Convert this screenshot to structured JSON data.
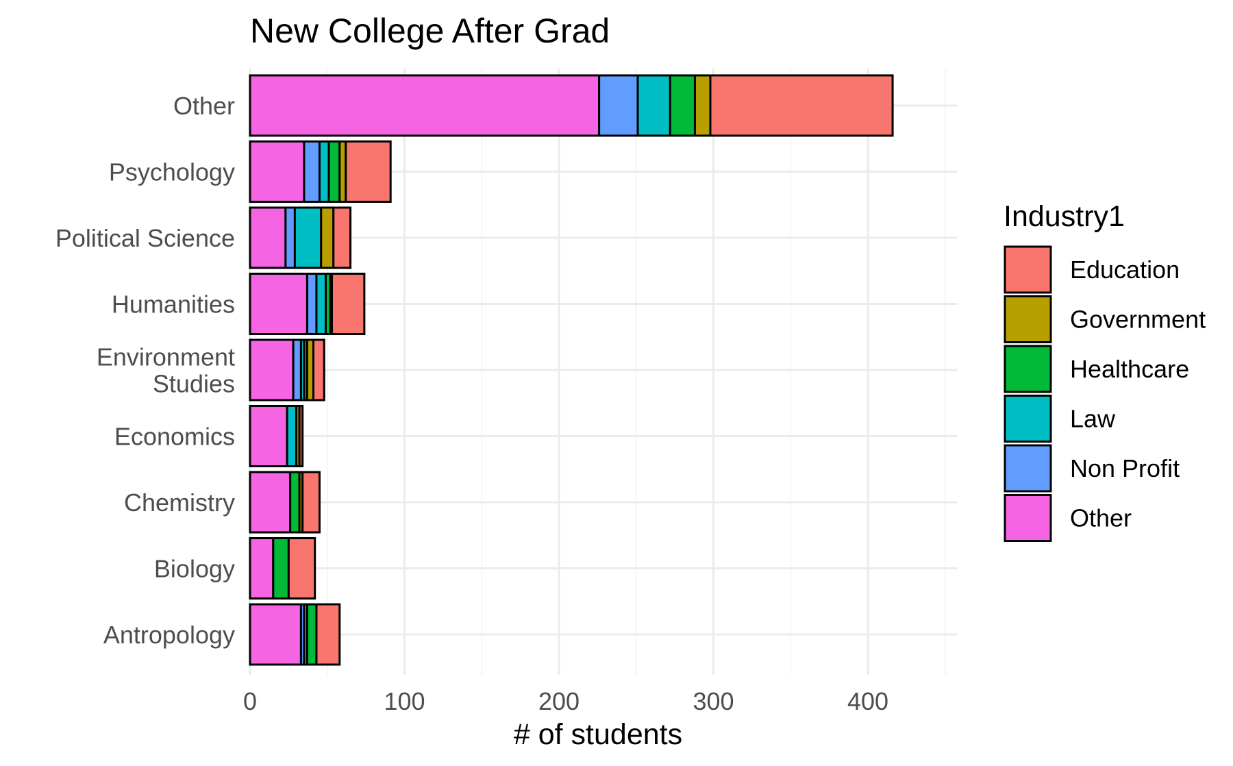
{
  "chart_data": {
    "type": "bar",
    "orientation": "horizontal",
    "stacked": true,
    "title": "New College After Grad",
    "xlabel": "# of students",
    "ylabel": "",
    "xlim": [
      0,
      460
    ],
    "x_ticks": [
      0,
      100,
      200,
      300,
      400
    ],
    "grid": true,
    "legend_title": "Industry1",
    "legend_position": "right",
    "categories": [
      "Other",
      "Psychology",
      "Political Science",
      "Humanities",
      "Environment Studies",
      "Economics",
      "Chemistry",
      "Biology",
      "Antropology"
    ],
    "category_labels": [
      [
        "Other"
      ],
      [
        "Psychology"
      ],
      [
        "Political Science"
      ],
      [
        "Humanities"
      ],
      [
        "Environment",
        "Studies"
      ],
      [
        "Economics"
      ],
      [
        "Chemistry"
      ],
      [
        "Biology"
      ],
      [
        "Antropology"
      ]
    ],
    "stack_order": [
      "Other",
      "Non Profit",
      "Law",
      "Healthcare",
      "Government",
      "Education"
    ],
    "series": [
      {
        "name": "Education",
        "color": "#F8766D",
        "values": [
          118,
          29,
          11,
          21,
          7,
          2,
          11,
          17,
          15
        ]
      },
      {
        "name": "Government",
        "color": "#B79F00",
        "values": [
          10,
          4,
          8,
          1,
          4,
          2,
          2,
          0,
          0
        ]
      },
      {
        "name": "Healthcare",
        "color": "#00BA38",
        "values": [
          16,
          7,
          0,
          3,
          2,
          0,
          6,
          10,
          6
        ]
      },
      {
        "name": "Law",
        "color": "#00BFC4",
        "values": [
          21,
          6,
          17,
          6,
          2,
          6,
          0,
          0,
          2
        ]
      },
      {
        "name": "Non Profit",
        "color": "#619CFF",
        "values": [
          25,
          10,
          6,
          6,
          5,
          0,
          0,
          0,
          2
        ]
      },
      {
        "name": "Other",
        "color": "#F564E3",
        "values": [
          226,
          35,
          23,
          37,
          28,
          24,
          26,
          15,
          33
        ]
      }
    ]
  }
}
